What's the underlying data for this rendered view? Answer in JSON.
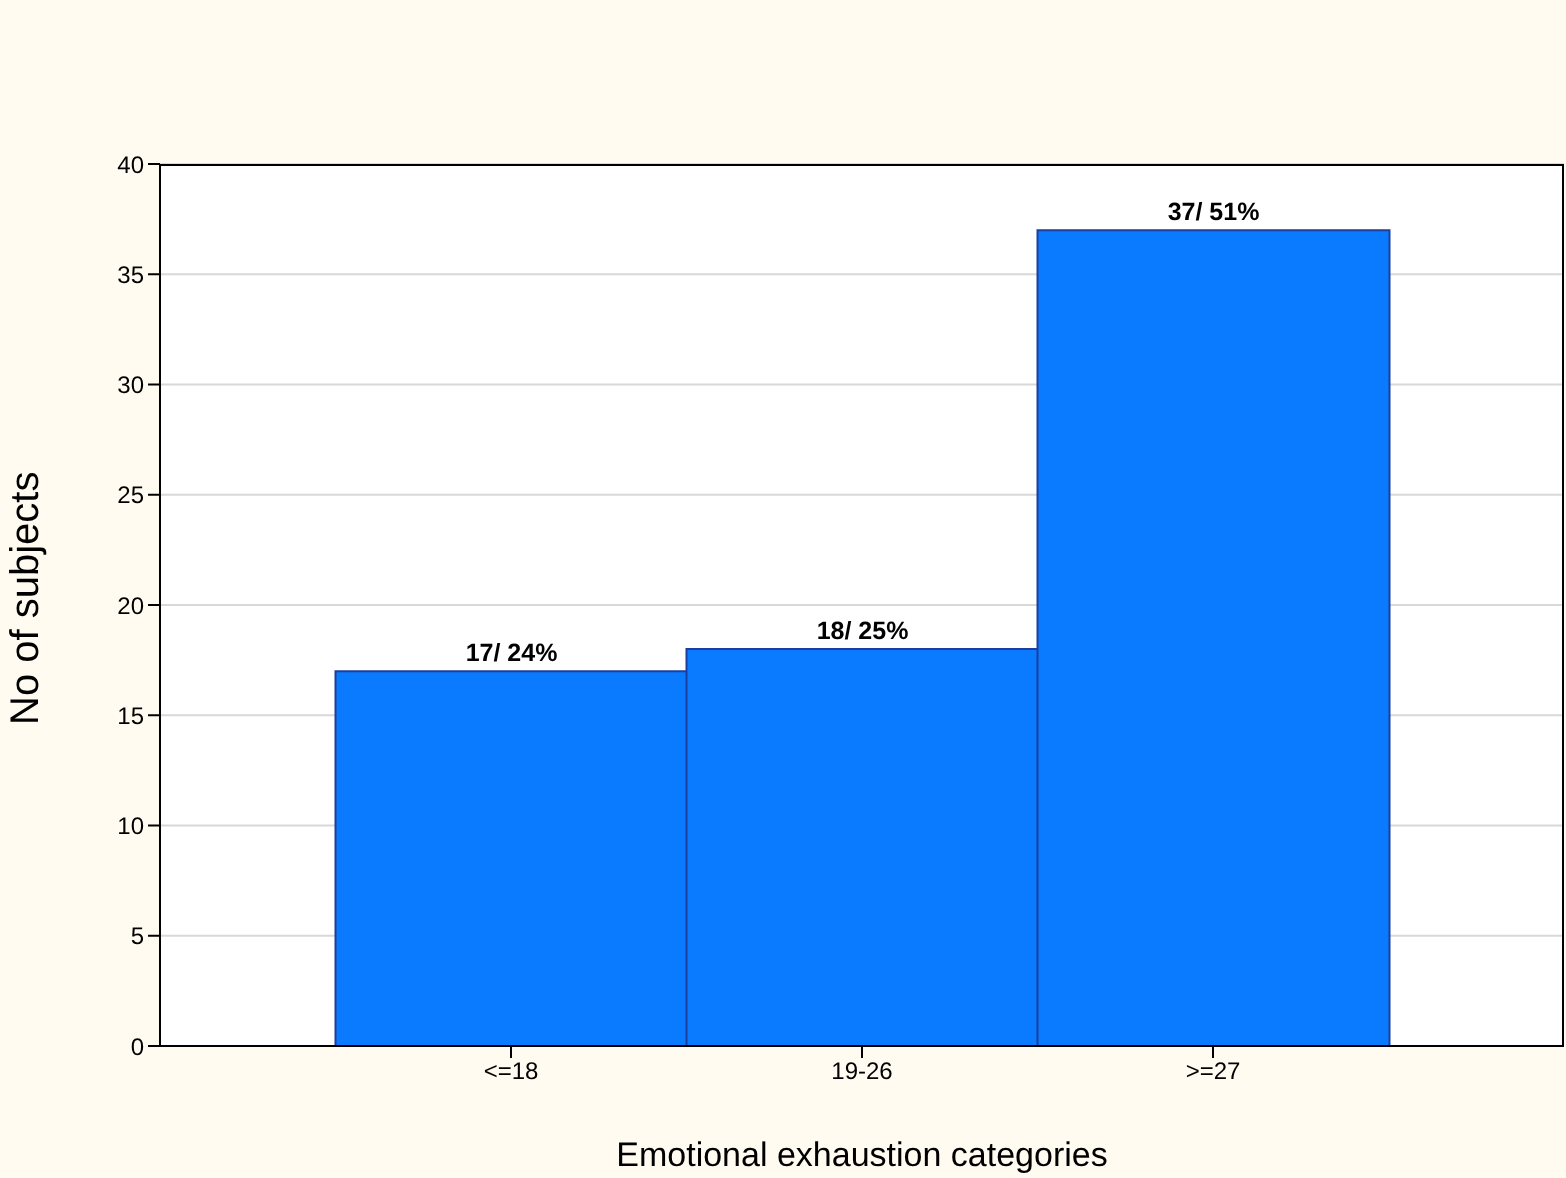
{
  "chart_data": {
    "type": "bar",
    "xlabel": "Emotional exhaustion categories",
    "ylabel": "No of subjects",
    "categories": [
      "<=18",
      "19-26",
      ">=27"
    ],
    "values": [
      17,
      18,
      37
    ],
    "value_labels": [
      "17/ 24%",
      "18/ 25%",
      "37/ 51%"
    ],
    "color": "#0a7bff",
    "ylim": [
      0,
      40
    ],
    "yticks": [
      0,
      5,
      10,
      15,
      20,
      25,
      30,
      35,
      40
    ],
    "grid": "y",
    "legend": false
  }
}
